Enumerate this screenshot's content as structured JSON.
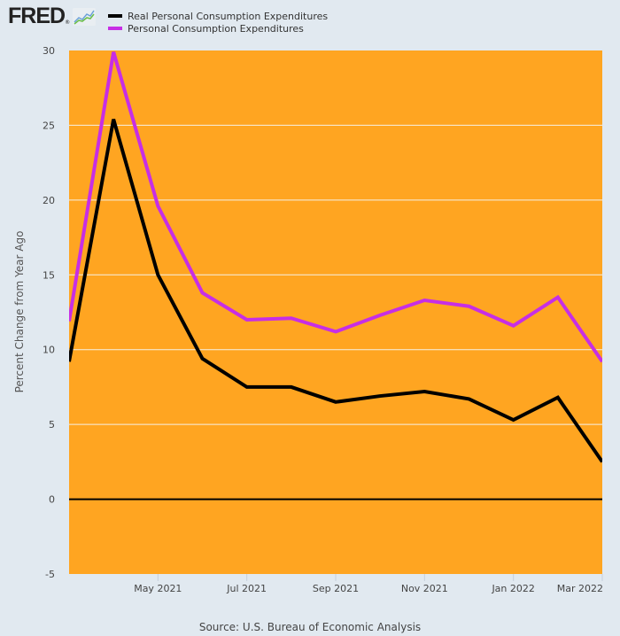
{
  "header": {
    "logo_text": "FRED",
    "logo_icon": "line-chart-icon"
  },
  "legend": [
    {
      "label": "Real Personal Consumption Expenditures",
      "color": "#000000"
    },
    {
      "label": "Personal Consumption Expenditures",
      "color": "#c72ee5"
    }
  ],
  "source": "Source: U.S. Bureau of Economic Analysis",
  "colors": {
    "page_bg": "#e1e9f0",
    "plot_bg": "#ffa521",
    "gridline": "#f5f1e6",
    "zero_line": "#000000"
  },
  "chart_data": {
    "type": "line",
    "title": "",
    "xlabel": "",
    "ylabel": "Percent Change from Year Ago",
    "ylim": [
      -5,
      30
    ],
    "yticks": [
      -5,
      0,
      5,
      10,
      15,
      20,
      25,
      30
    ],
    "grid": true,
    "legend_position": "top-left",
    "x": [
      "2021-03",
      "2021-04",
      "2021-05",
      "2021-06",
      "2021-07",
      "2021-08",
      "2021-09",
      "2021-10",
      "2021-11",
      "2021-12",
      "2022-01",
      "2022-02",
      "2022-03"
    ],
    "xticks": [
      {
        "index": 2,
        "label": "May 2021"
      },
      {
        "index": 4,
        "label": "Jul 2021"
      },
      {
        "index": 6,
        "label": "Sep 2021"
      },
      {
        "index": 8,
        "label": "Nov 2021"
      },
      {
        "index": 10,
        "label": "Jan 2022"
      },
      {
        "index": 12,
        "label": "Mar 2022"
      }
    ],
    "series": [
      {
        "name": "Personal Consumption Expenditures",
        "color": "#c72ee5",
        "values": [
          11.9,
          29.9,
          19.6,
          13.8,
          12.0,
          12.1,
          11.2,
          12.3,
          13.3,
          12.9,
          11.6,
          13.5,
          9.2
        ]
      },
      {
        "name": "Real Personal Consumption Expenditures",
        "color": "#000000",
        "values": [
          9.2,
          25.4,
          15.0,
          9.4,
          7.5,
          7.5,
          6.5,
          6.9,
          7.2,
          6.7,
          5.3,
          6.8,
          2.5
        ]
      }
    ]
  }
}
